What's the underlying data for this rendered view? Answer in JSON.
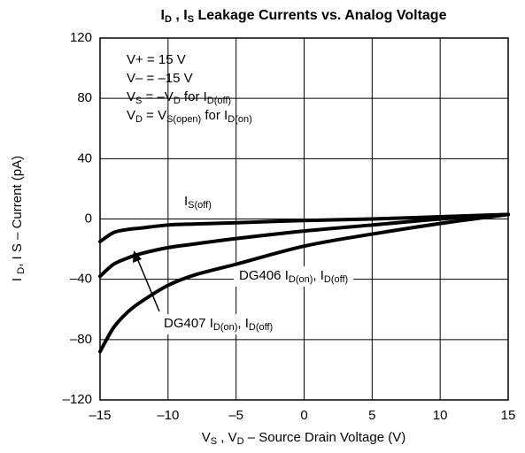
{
  "chart_data": {
    "type": "line",
    "title": [
      {
        "text": "I"
      },
      {
        "text": "D",
        "sub": true
      },
      {
        "text": " , I"
      },
      {
        "text": "S",
        "sub": true
      },
      {
        "text": " Leakage Currents vs. Analog Voltage"
      }
    ],
    "x_label": [
      {
        "text": "V"
      },
      {
        "text": "S",
        "sub": true
      },
      {
        "text": " , V"
      },
      {
        "text": "D",
        "sub": true
      },
      {
        "text": " – Source Drain Voltage (V)"
      }
    ],
    "y_label": [
      {
        "text": "I "
      },
      {
        "text": "D",
        "sub": true
      },
      {
        "text": ", I  S – Current (pA)"
      }
    ],
    "annotations": [
      [
        {
          "text": "V+ = 15 V"
        }
      ],
      [
        {
          "text": "V– = –15 V"
        }
      ],
      [
        {
          "text": "V"
        },
        {
          "text": "S",
          "sub": true
        },
        {
          "text": " = –V"
        },
        {
          "text": "D",
          "sub": true
        },
        {
          "text": " for I"
        },
        {
          "text": "D(off)",
          "sub": true
        }
      ],
      [
        {
          "text": "V"
        },
        {
          "text": "D",
          "sub": true
        },
        {
          "text": " = V"
        },
        {
          "text": "S(open)",
          "sub": true
        },
        {
          "text": " for I"
        },
        {
          "text": "D(on)",
          "sub": true
        }
      ]
    ],
    "x": [
      -15,
      -14,
      -13,
      -12,
      -10,
      -8,
      -5,
      0,
      5,
      10,
      15
    ],
    "series": [
      {
        "name": [
          {
            "text": "I"
          },
          {
            "text": "S(off)",
            "sub": true
          }
        ],
        "color": "#000000",
        "values": [
          -15,
          -9,
          -7,
          -6,
          -4,
          -3.3,
          -2.5,
          -1,
          0,
          1.5,
          3
        ]
      },
      {
        "name": [
          {
            "text": "DG406 I"
          },
          {
            "text": "D(on)",
            "sub": true
          },
          {
            "text": ", I"
          },
          {
            "text": "D(off)",
            "sub": true
          }
        ],
        "color": "#000000",
        "values": [
          -38,
          -30,
          -26,
          -23,
          -19,
          -16.5,
          -13,
          -8,
          -4,
          0,
          3
        ]
      },
      {
        "name": [
          {
            "text": "DG407 I"
          },
          {
            "text": "D(on)",
            "sub": true
          },
          {
            "text": ", I"
          },
          {
            "text": "D(off)",
            "sub": true
          }
        ],
        "color": "#000000",
        "values": [
          -88,
          -72,
          -62,
          -55,
          -44,
          -37,
          -30,
          -18,
          -10,
          -3,
          3
        ]
      }
    ],
    "xlim": [
      -15,
      15
    ],
    "ylim": [
      -120,
      120
    ],
    "xticks": [
      {
        "value": -15,
        "label": "–15"
      },
      {
        "value": -10,
        "label": "–10"
      },
      {
        "value": -5,
        "label": "–5"
      },
      0,
      5,
      10,
      15
    ],
    "yticks": [
      {
        "value": -120,
        "label": "–120"
      },
      {
        "value": -80,
        "label": "–80"
      },
      {
        "value": -40,
        "label": "–40"
      },
      0,
      40,
      80,
      120
    ],
    "grid": true
  }
}
